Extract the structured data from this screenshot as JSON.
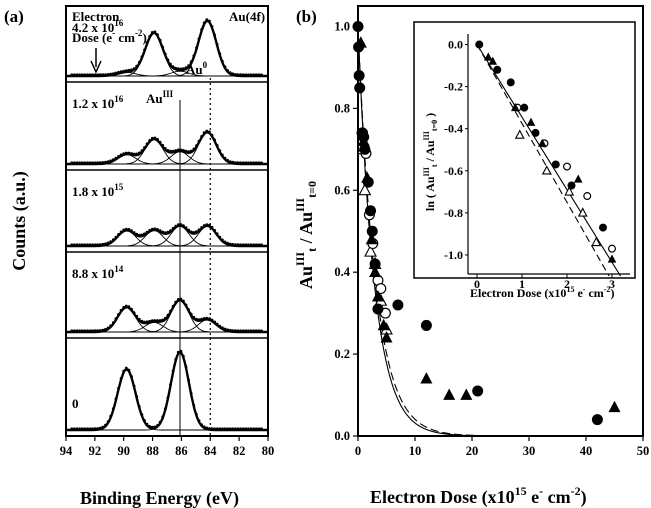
{
  "chart_data": [
    {
      "panel": "(a)",
      "type": "line",
      "xlabel": "Binding Energy (eV)",
      "ylabel": "Counts (a.u.)",
      "xlim": [
        94,
        80
      ],
      "xticks": [
        "94",
        "92",
        "90",
        "88",
        "86",
        "84",
        "82",
        "80"
      ],
      "header_left": [
        "Electron",
        "Dose (e",
        "cm",
        ")"
      ],
      "header_right": "Au(4f)",
      "peak_labels": {
        "au3": "Au",
        "au3_sup": "III",
        "au0": "Au",
        "au0_sup": "0"
      },
      "reference_lines": {
        "au3_eV": 86.1,
        "au0_eV": 84.0
      },
      "spectra": [
        {
          "dose_mant": "4.2 x 10",
          "dose_exp": "16",
          "au3_frac": 0.08
        },
        {
          "dose_mant": "1.2 x 10",
          "dose_exp": "16",
          "au3_frac": 0.28
        },
        {
          "dose_mant": "1.8 x 10",
          "dose_exp": "15",
          "au3_frac": 0.5
        },
        {
          "dose_mant": "8.8 x 10",
          "dose_exp": "14",
          "au3_frac": 0.72
        },
        {
          "dose_mant": "0",
          "dose_exp": "",
          "au3_frac": 1.0
        }
      ],
      "au3_peaks_eV": [
        89.8,
        86.1
      ],
      "au0_peaks_eV": [
        87.9,
        84.2
      ]
    },
    {
      "panel": "(b)",
      "type": "scatter",
      "xlabel": "Electron Dose (x10",
      "xlabel_sup": "15",
      "xlabel_tail": " e",
      "xlabel_tail2": " cm",
      "xlabel_tail3": ")",
      "ylabel": "Au",
      "xlim": [
        0,
        50
      ],
      "ylim": [
        0,
        1.05
      ],
      "xticks": [
        0,
        10,
        20,
        30,
        40,
        50
      ],
      "yticks": [
        "0.0",
        "0.2",
        "0.4",
        "0.6",
        "0.8",
        "1.0"
      ],
      "filled_circles": [
        [
          0,
          1.0
        ],
        [
          0.1,
          0.95
        ],
        [
          0.2,
          0.88
        ],
        [
          0.3,
          0.85
        ],
        [
          0.8,
          0.74
        ],
        [
          1.0,
          0.73
        ],
        [
          1.2,
          0.7
        ],
        [
          1.8,
          0.62
        ],
        [
          2.2,
          0.55
        ],
        [
          2.5,
          0.5
        ],
        [
          3.0,
          0.42
        ],
        [
          3.5,
          0.31
        ],
        [
          7.0,
          0.32
        ],
        [
          12.0,
          0.27
        ],
        [
          21.0,
          0.11
        ],
        [
          42.0,
          0.04
        ]
      ],
      "filled_triangles": [
        [
          0.5,
          0.96
        ],
        [
          1.0,
          0.72
        ],
        [
          1.6,
          0.63
        ],
        [
          2.4,
          0.48
        ],
        [
          3.0,
          0.4
        ],
        [
          3.5,
          0.34
        ],
        [
          4.5,
          0.27
        ],
        [
          5.0,
          0.24
        ],
        [
          12.0,
          0.14
        ],
        [
          16.0,
          0.1
        ],
        [
          19.0,
          0.1
        ],
        [
          45.0,
          0.07
        ]
      ],
      "open_circles": [
        [
          0.7,
          0.74
        ],
        [
          1.4,
          0.69
        ],
        [
          2.0,
          0.54
        ],
        [
          2.6,
          0.47
        ],
        [
          3.5,
          0.38
        ],
        [
          4.0,
          0.36
        ],
        [
          4.8,
          0.3
        ]
      ],
      "open_triangles": [
        [
          0.9,
          0.7
        ],
        [
          1.2,
          0.6
        ],
        [
          2.2,
          0.45
        ],
        [
          3.0,
          0.42
        ],
        [
          4.0,
          0.33
        ],
        [
          5.0,
          0.26
        ]
      ],
      "fit_k": [
        0.345,
        0.32
      ],
      "inset": {
        "xlabel": "Electron Dose (x10",
        "xlabel_sup": "15",
        "xlabel_tail": " e",
        "xlabel_tail2": " cm",
        "xlabel_tail3": ")",
        "ylabel": "ln ( Au",
        "xlim": [
          -0.2,
          3.4
        ],
        "ylim": [
          -1.1,
          0.05
        ],
        "xticks": [
          0,
          1,
          2,
          3
        ],
        "yticks": [
          "0.0",
          "-0.2",
          "-0.4",
          "-0.6",
          "-0.8",
          "-1.0"
        ],
        "filled_circles": [
          [
            0.05,
            0.0
          ],
          [
            0.45,
            -0.12
          ],
          [
            0.75,
            -0.18
          ],
          [
            1.05,
            -0.3
          ],
          [
            1.3,
            -0.42
          ],
          [
            1.75,
            -0.57
          ],
          [
            2.1,
            -0.67
          ],
          [
            2.8,
            -0.87
          ]
        ],
        "filled_triangles": [
          [
            0.25,
            -0.06
          ],
          [
            0.35,
            -0.08
          ],
          [
            0.85,
            -0.3
          ],
          [
            1.2,
            -0.37
          ],
          [
            1.45,
            -0.47
          ],
          [
            2.25,
            -0.64
          ],
          [
            3.0,
            -1.02
          ]
        ],
        "open_circles": [
          [
            0.9,
            -0.3
          ],
          [
            1.5,
            -0.47
          ],
          [
            2.0,
            -0.58
          ],
          [
            2.45,
            -0.72
          ],
          [
            3.0,
            -0.97
          ]
        ],
        "open_triangles": [
          [
            0.95,
            -0.43
          ],
          [
            1.55,
            -0.6
          ],
          [
            2.05,
            -0.7
          ],
          [
            2.35,
            -0.8
          ],
          [
            2.65,
            -0.94
          ]
        ],
        "fit_slopes": [
          -0.345,
          -0.375
        ]
      }
    }
  ]
}
